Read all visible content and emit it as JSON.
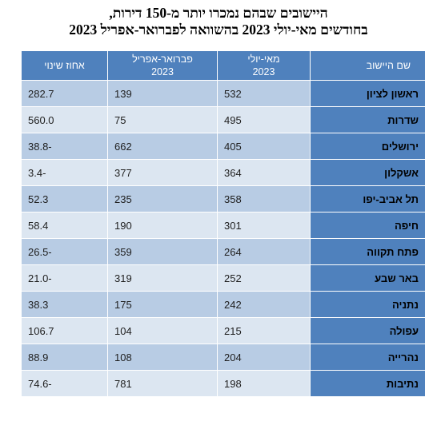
{
  "title": {
    "line1": "היישובים שבהם נמכרו יותר מ-150 דירות,",
    "line2": "בחודשים מאי-יולי 2023 בהשוואה לפברואר-אפריל 2023"
  },
  "table": {
    "headers": {
      "name": "שם היישוב",
      "may_jul": "מאי-יולי\n2023",
      "feb_apr": "פברואר-אפריל\n2023",
      "change": "אחוז שינוי"
    },
    "rows": [
      {
        "name": "ראשון לציון",
        "may_jul": "532",
        "feb_apr": "139",
        "change": "282.7"
      },
      {
        "name": "שדרות",
        "may_jul": "495",
        "feb_apr": "75",
        "change": "560.0"
      },
      {
        "name": "ירושלים",
        "may_jul": "405",
        "feb_apr": "662",
        "change": "38.8-"
      },
      {
        "name": "אשקלון",
        "may_jul": "364",
        "feb_apr": "377",
        "change": "3.4-"
      },
      {
        "name": "תל אביב-יפו",
        "may_jul": "358",
        "feb_apr": "235",
        "change": "52.3"
      },
      {
        "name": "חיפה",
        "may_jul": "301",
        "feb_apr": "190",
        "change": "58.4"
      },
      {
        "name": "פתח תקווה",
        "may_jul": "264",
        "feb_apr": "359",
        "change": "26.5-"
      },
      {
        "name": "באר שבע",
        "may_jul": "252",
        "feb_apr": "319",
        "change": "21.0-"
      },
      {
        "name": "נתניה",
        "may_jul": "242",
        "feb_apr": "175",
        "change": "38.3"
      },
      {
        "name": "עפולה",
        "may_jul": "215",
        "feb_apr": "104",
        "change": "106.7"
      },
      {
        "name": "נהרייה",
        "may_jul": "204",
        "feb_apr": "108",
        "change": "88.9"
      },
      {
        "name": "נתיבות",
        "may_jul": "198",
        "feb_apr": "781",
        "change": "74.6-"
      }
    ]
  },
  "colors": {
    "header_bg": "#4f81bd",
    "row_odd": "#b8cce4",
    "row_even": "#dce6f1"
  }
}
